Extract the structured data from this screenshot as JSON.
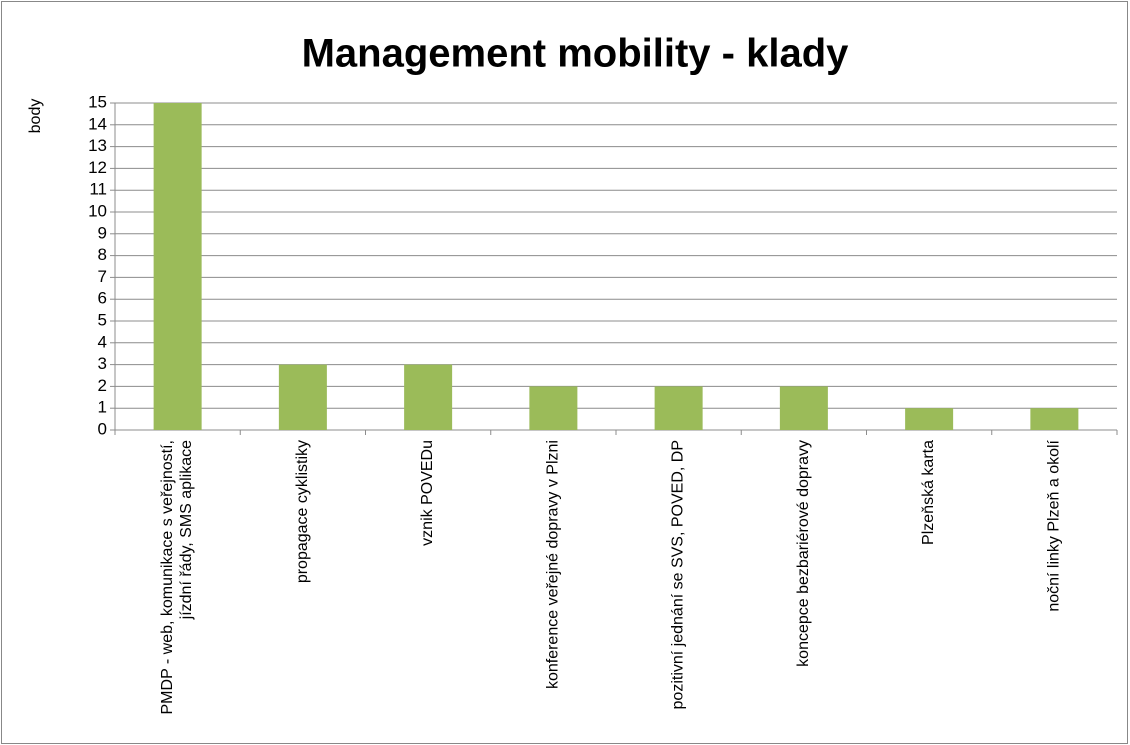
{
  "chart_data": {
    "type": "bar",
    "title": "Management mobility - klady",
    "y_label": "body",
    "categories": [
      "PMDP - web, komunikace s veřejností, jízdní řády, SMS aplikace",
      "propagace cyklistiky",
      "vznik POVEDu",
      "konference veřejné dopravy v Plzni",
      "pozitivní jednání se SVS, POVED, DP",
      "koncepce bezbariérové dopravy",
      "Plzeňská karta",
      "noční linky Plzeň a okolí"
    ],
    "values": [
      15,
      3,
      3,
      2,
      2,
      2,
      1,
      1
    ],
    "color": "#9bbb59",
    "ylim": [
      0,
      15
    ],
    "yticks": [
      0,
      1,
      2,
      3,
      4,
      5,
      6,
      7,
      8,
      9,
      10,
      11,
      12,
      13,
      14,
      15
    ],
    "grid": true
  }
}
